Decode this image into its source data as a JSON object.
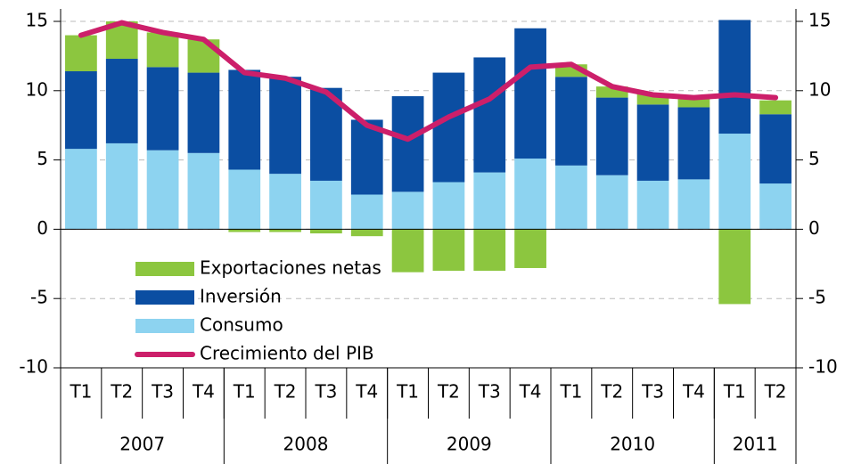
{
  "chart_data": {
    "type": "stacked_bar_line",
    "categories": [
      "T1",
      "T2",
      "T3",
      "T4",
      "T1",
      "T2",
      "T3",
      "T4",
      "T1",
      "T2",
      "T3",
      "T4",
      "T1",
      "T2",
      "T3",
      "T4",
      "T1",
      "T2"
    ],
    "year_groups": [
      {
        "label": "2007",
        "span": 4
      },
      {
        "label": "2008",
        "span": 4
      },
      {
        "label": "2009",
        "span": 4
      },
      {
        "label": "2010",
        "span": 4
      },
      {
        "label": "2011",
        "span": 2
      }
    ],
    "series": [
      {
        "name": "Exportaciones netas",
        "color": "#8cc63f",
        "kind": "bar",
        "values": [
          2.6,
          2.7,
          2.5,
          2.4,
          -0.2,
          -0.2,
          -0.3,
          -0.5,
          -3.1,
          -3.0,
          -3.0,
          -2.8,
          0.9,
          0.8,
          0.8,
          0.7,
          -5.4,
          1.0
        ]
      },
      {
        "name": "Inversión",
        "color": "#0b4ea2",
        "kind": "bar",
        "values": [
          5.6,
          6.1,
          6.0,
          5.8,
          7.2,
          7.0,
          6.7,
          5.4,
          6.9,
          7.9,
          8.3,
          9.4,
          6.4,
          5.6,
          5.5,
          5.2,
          8.2,
          5.0
        ]
      },
      {
        "name": "Consumo",
        "color": "#8dd3f0",
        "kind": "bar",
        "values": [
          5.8,
          6.2,
          5.7,
          5.5,
          4.3,
          4.0,
          3.5,
          2.5,
          2.7,
          3.4,
          4.1,
          5.1,
          4.6,
          3.9,
          3.5,
          3.6,
          6.9,
          3.3
        ]
      },
      {
        "name": "Crecimiento del PIB",
        "color": "#cc1f6a",
        "kind": "line",
        "values": [
          14.0,
          14.9,
          14.2,
          13.7,
          11.3,
          10.9,
          9.9,
          7.5,
          6.5,
          8.1,
          9.4,
          11.7,
          11.9,
          10.3,
          9.7,
          9.5,
          9.7,
          9.5
        ]
      }
    ],
    "ylim": [
      -10,
      15
    ],
    "yticks": [
      -10,
      -5,
      0,
      5,
      10,
      15
    ],
    "y2lim": [
      -10,
      15
    ],
    "y2ticks": [
      -10,
      -5,
      0,
      5,
      10,
      15
    ],
    "grid": true
  }
}
